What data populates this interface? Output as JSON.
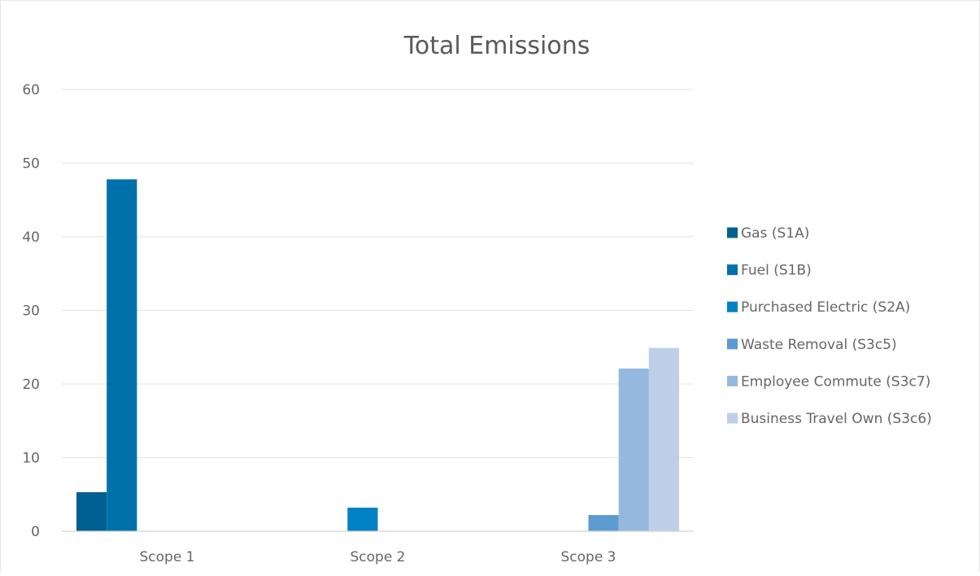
{
  "chart_data": {
    "type": "bar",
    "title": "Total Emissions",
    "xlabel": "",
    "ylabel": "",
    "ylim": [
      0,
      60
    ],
    "yticks": [
      0,
      10,
      20,
      30,
      40,
      50,
      60
    ],
    "grid": true,
    "legend_position": "right",
    "categories": [
      "Scope 1",
      "Scope 2",
      "Scope 3"
    ],
    "series": [
      {
        "name": "Gas (S1A)",
        "color": "#005f91",
        "values": [
          5.3,
          0,
          0
        ]
      },
      {
        "name": "Fuel (S1B)",
        "color": "#0070aa",
        "values": [
          47.8,
          0,
          0
        ]
      },
      {
        "name": "Purchased Electric (S2A)",
        "color": "#0081c3",
        "values": [
          0,
          3.2,
          0
        ]
      },
      {
        "name": "Waste Removal (S3c5)",
        "color": "#5b9bd0",
        "values": [
          0,
          0,
          2.2
        ]
      },
      {
        "name": "Employee Commute (S3c7)",
        "color": "#95b9de",
        "values": [
          0,
          0,
          22.1
        ]
      },
      {
        "name": "Business Travel Own (S3c6)",
        "color": "#bdd0e8",
        "values": [
          0,
          0,
          24.9
        ]
      }
    ]
  }
}
